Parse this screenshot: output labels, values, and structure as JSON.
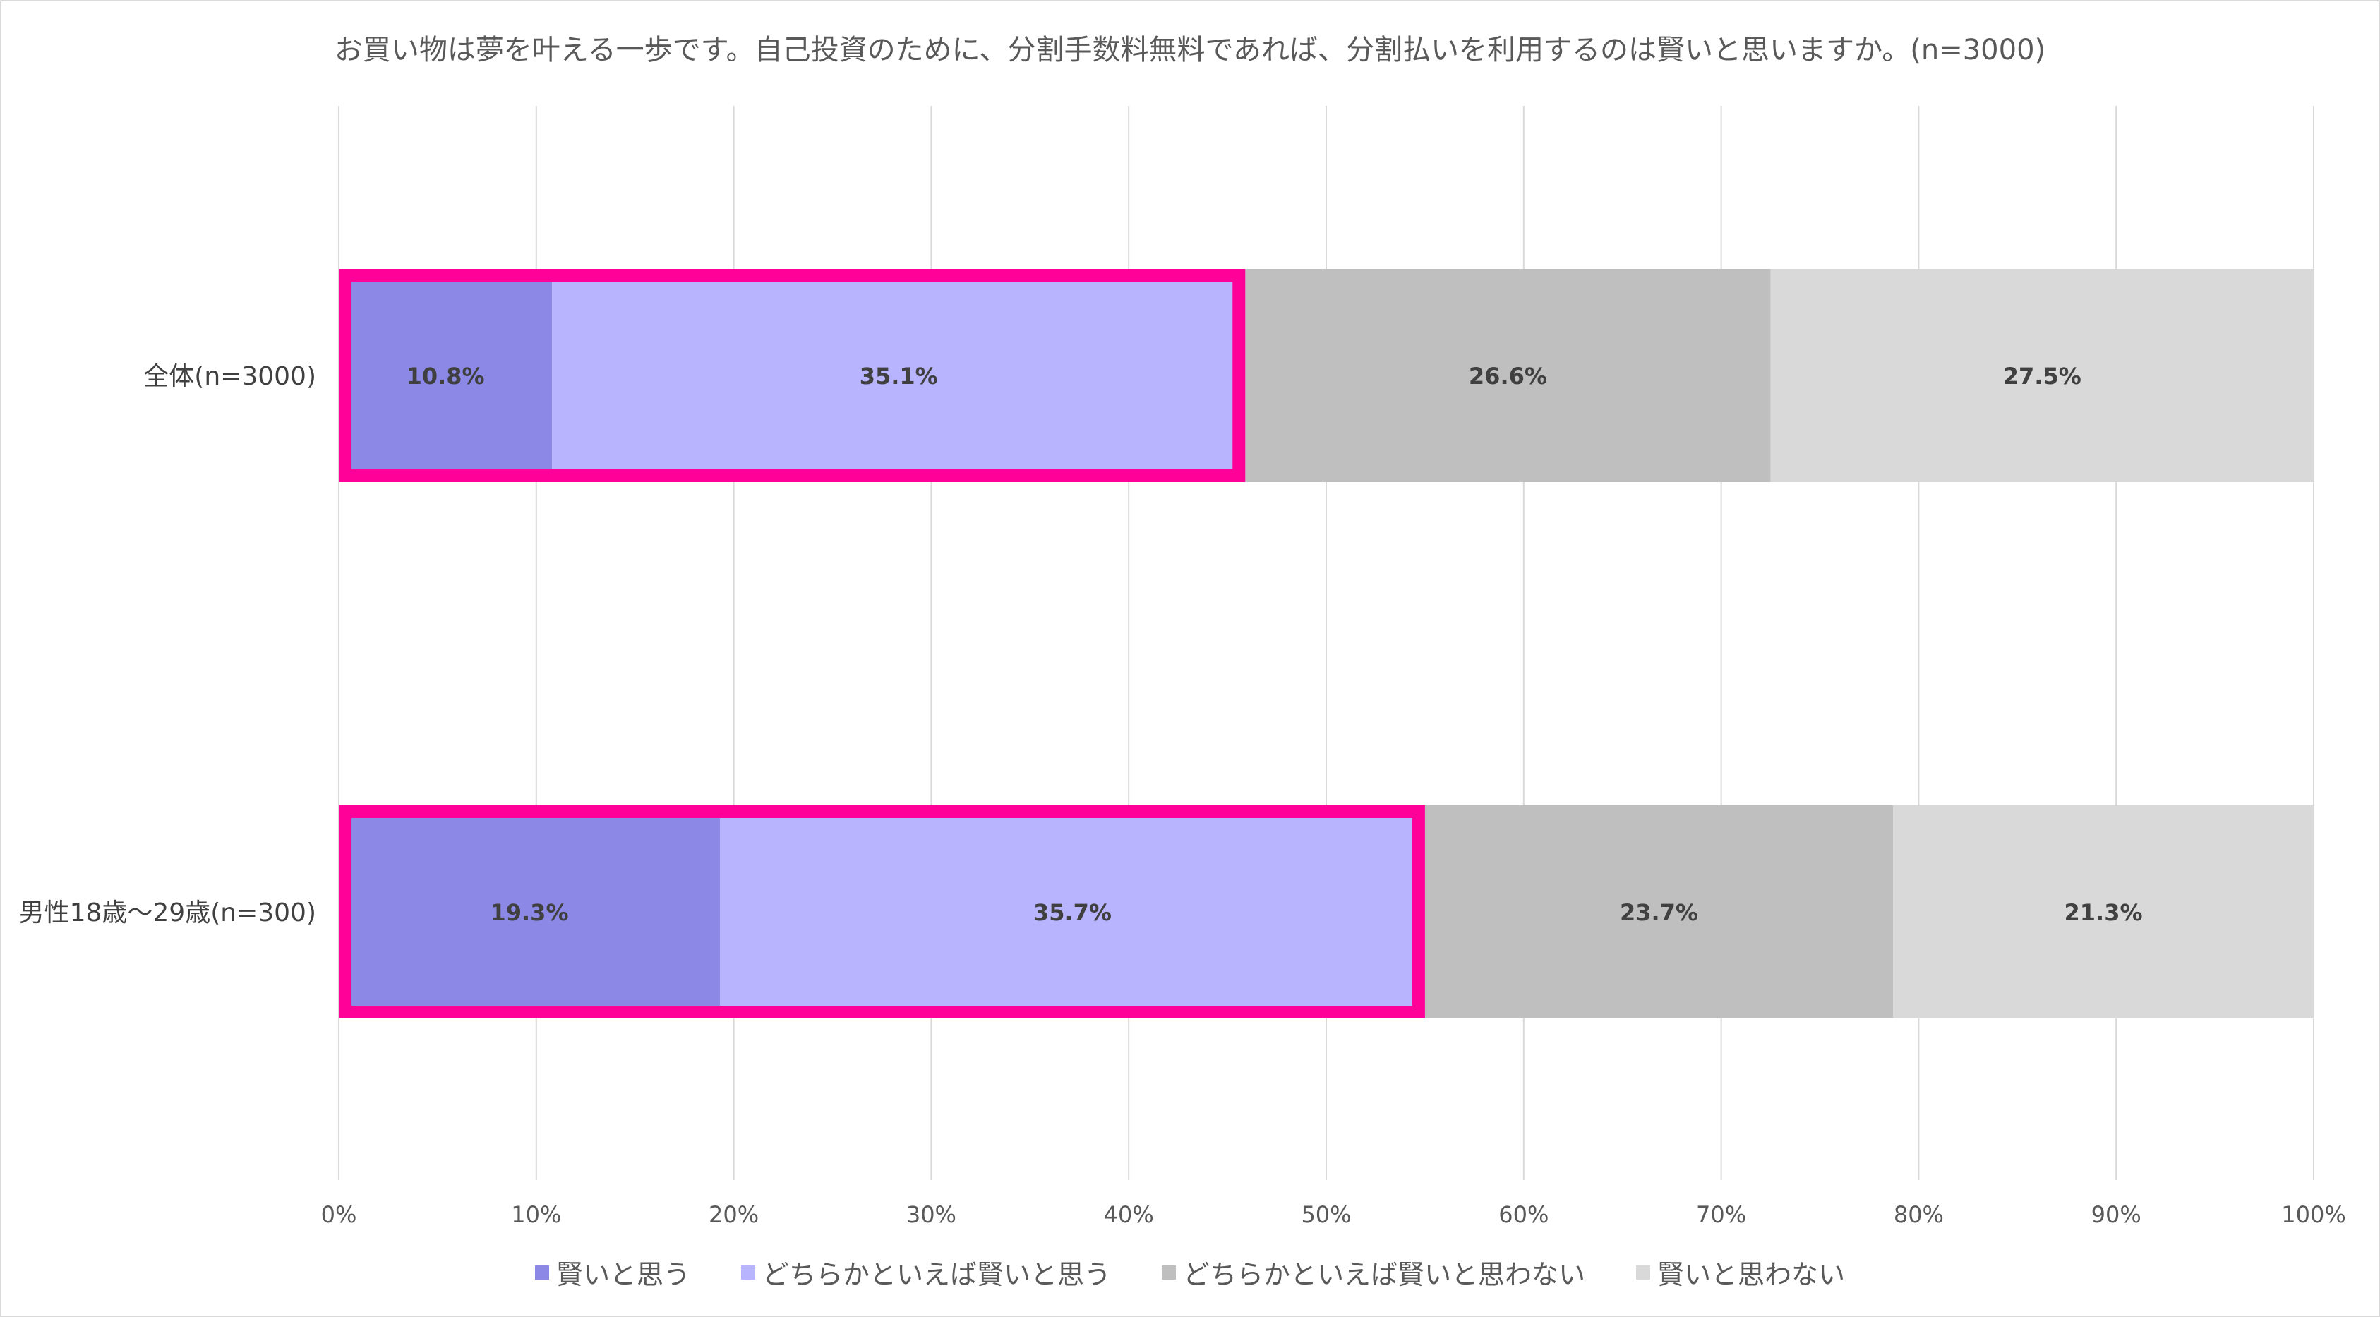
{
  "chart_data": {
    "type": "bar",
    "orientation": "horizontal",
    "stacked": true,
    "title": "お買い物は夢を叶える一歩です。自己投資のために、分割手数料無料であれば、分割払いを利用するのは賢いと思いますか。(n=3000)",
    "categories": [
      "全体(n=3000)",
      "男性18歳～29歳(n=300)"
    ],
    "series": [
      {
        "name": "賢いと思う",
        "color": "#8b88e6",
        "values": [
          10.8,
          19.3
        ],
        "labels": [
          "10.8%",
          "19.3%"
        ]
      },
      {
        "name": "どちらかといえば賢いと思う",
        "color": "#b8b4fe",
        "values": [
          35.1,
          35.7
        ],
        "labels": [
          "35.1%",
          "35.7%"
        ]
      },
      {
        "name": "どちらかといえば賢いと思わない",
        "color": "#bfbfbf",
        "values": [
          26.6,
          23.7
        ],
        "labels": [
          "26.6%",
          "23.7%"
        ]
      },
      {
        "name": "賢いと思わない",
        "color": "#d9d9d9",
        "values": [
          27.5,
          21.3
        ],
        "labels": [
          "27.5%",
          "21.3%"
        ]
      }
    ],
    "xlim": [
      0,
      100
    ],
    "xticks": [
      "0%",
      "10%",
      "20%",
      "30%",
      "40%",
      "50%",
      "60%",
      "70%",
      "80%",
      "90%",
      "100%"
    ],
    "grid": true,
    "legend": "bottom",
    "highlight": {
      "series_count": 2,
      "color": "#ff0099"
    }
  }
}
